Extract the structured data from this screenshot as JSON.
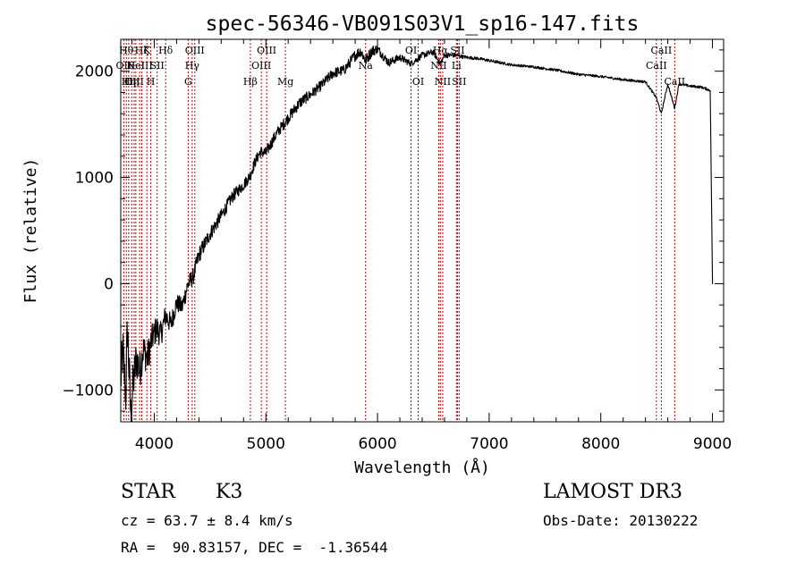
{
  "chart_data": {
    "type": "line",
    "title": "spec-56346-VB091S03V1_sp16-147.fits",
    "xlabel": "Wavelength (Å)",
    "ylabel": "Flux (relative)",
    "xlim": [
      3700,
      9100
    ],
    "ylim": [
      -1300,
      2300
    ],
    "xticks": [
      4000,
      5000,
      6000,
      7000,
      8000,
      9000
    ],
    "yticks": [
      -1000,
      0,
      1000,
      2000
    ],
    "spectrum_anchors": {
      "x": [
        3700,
        3720,
        3745,
        3760,
        3790,
        3810,
        3840,
        3870,
        3900,
        3940,
        3980,
        4020,
        4060,
        4100,
        4150,
        4200,
        4250,
        4300,
        4350,
        4400,
        4450,
        4500,
        4600,
        4700,
        4800,
        4860,
        4900,
        4950,
        5000,
        5100,
        5200,
        5300,
        5400,
        5500,
        5600,
        5700,
        5800,
        5850,
        5893,
        5950,
        6000,
        6100,
        6200,
        6300,
        6400,
        6500,
        6563,
        6600,
        6700,
        6800,
        6900,
        7000,
        7200,
        7400,
        7600,
        7800,
        8000,
        8200,
        8400,
        8498,
        8542,
        8600,
        8662,
        8700,
        8800,
        8900,
        8980,
        8995,
        9000,
        9005
      ],
      "y": [
        -900,
        -650,
        -1050,
        -400,
        -1250,
        -950,
        -700,
        -820,
        -620,
        -700,
        -520,
        -420,
        -480,
        -300,
        -380,
        -180,
        -220,
        -10,
        70,
        270,
        370,
        470,
        640,
        820,
        930,
        1020,
        1140,
        1240,
        1230,
        1420,
        1560,
        1700,
        1780,
        1870,
        1980,
        2010,
        2150,
        2190,
        2100,
        2190,
        2210,
        2080,
        2130,
        2070,
        2150,
        2180,
        2070,
        2150,
        2150,
        2130,
        2120,
        2100,
        2060,
        2040,
        2010,
        1970,
        1950,
        1920,
        1900,
        1750,
        1600,
        1880,
        1650,
        1880,
        1860,
        1850,
        1820,
        500,
        0,
        0
      ],
      "noise_amplitude": [
        250,
        250,
        250,
        250,
        250,
        220,
        200,
        190,
        170,
        160,
        140,
        130,
        120,
        110,
        100,
        90,
        90,
        90,
        80,
        80,
        75,
        70,
        65,
        60,
        55,
        55,
        55,
        55,
        55,
        55,
        55,
        55,
        50,
        50,
        50,
        50,
        55,
        55,
        55,
        55,
        45,
        40,
        35,
        30,
        30,
        30,
        30,
        25,
        20,
        15,
        15,
        15,
        12,
        12,
        12,
        12,
        12,
        12,
        12,
        12,
        12,
        12,
        12,
        12,
        12,
        12,
        12,
        0,
        0,
        0
      ]
    },
    "spectral_lines": [
      {
        "x": 3727,
        "label": "OII",
        "row": 1
      },
      {
        "x": 3750,
        "label": "Hθ",
        "row": 0
      },
      {
        "x": 3771,
        "label": "Hη",
        "row": 2
      },
      {
        "x": 3798,
        "label": "Hη",
        "row": 2
      },
      {
        "x": 3820,
        "label": "OIII",
        "row": 2
      },
      {
        "x": 3835,
        "label": "HeI",
        "row": 1
      },
      {
        "x": 3869,
        "label": "NeIII",
        "row": 1
      },
      {
        "x": 3889,
        "label": "Hζ",
        "row": 0
      },
      {
        "x": 3934,
        "label": "K",
        "row": 0
      },
      {
        "x": 3969,
        "label": "H",
        "row": 2
      },
      {
        "x": 4026,
        "label": "SII",
        "row": 1
      },
      {
        "x": 4102,
        "label": "Hδ",
        "row": 0
      },
      {
        "x": 4304,
        "label": "G",
        "row": 2
      },
      {
        "x": 4340,
        "label": "Hγ",
        "row": 1
      },
      {
        "x": 4363,
        "label": "OIII",
        "row": 0
      },
      {
        "x": 4861,
        "label": "Hβ",
        "row": 2
      },
      {
        "x": 4959,
        "label": "OIII",
        "row": 1
      },
      {
        "x": 5007,
        "label": "OIII",
        "row": 0
      },
      {
        "x": 5175,
        "label": "Mg",
        "row": 2
      },
      {
        "x": 5893,
        "label": "Na",
        "row": 1
      },
      {
        "x": 6300,
        "label": "OI",
        "row": 0
      },
      {
        "x": 6364,
        "label": "OI",
        "row": 2
      },
      {
        "x": 6548,
        "label": "NII",
        "row": 1
      },
      {
        "x": 6563,
        "label": "Hα",
        "row": 0
      },
      {
        "x": 6584,
        "label": "NII",
        "row": 2
      },
      {
        "x": 6707,
        "label": "Li",
        "row": 1
      },
      {
        "x": 6716,
        "label": "SII",
        "row": 0
      },
      {
        "x": 6731,
        "label": "SII",
        "row": 2
      },
      {
        "x": 8498,
        "label": "CaII",
        "row": 1
      },
      {
        "x": 8542,
        "label": "CaII",
        "row": 0
      },
      {
        "x": 8662,
        "label": "CaII",
        "row": 2
      }
    ]
  },
  "info": {
    "class_label": "STAR",
    "subclass": "K3",
    "survey": "LAMOST DR3",
    "cz": "cz = 63.7 ± 8.4 km/s",
    "obs_date": "Obs-Date: 20130222",
    "coords": "RA =  90.83157, DEC =  -1.36544"
  },
  "colors": {
    "line_marker": "#cc0000",
    "spectrum": "#000000",
    "axes": "#000000"
  }
}
